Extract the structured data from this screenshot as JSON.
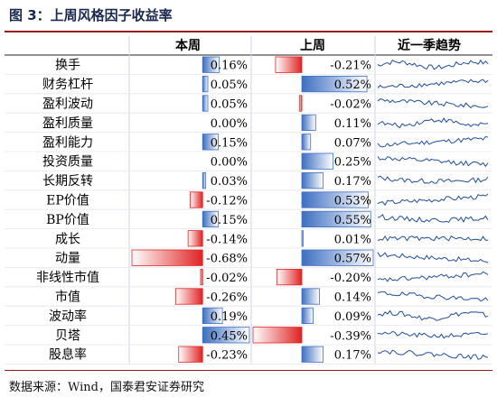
{
  "title": "图 3：上周风格因子收益率",
  "source": "数据来源：Wind，国泰君安证券研究",
  "colors": {
    "positive": "#3d6fc0",
    "negative": "#e02222",
    "sparkline": "#1f4e9c",
    "title_rule": "#9b1c1c"
  },
  "chart_data": {
    "type": "table",
    "columns": [
      "本周",
      "上周",
      "近一季趋势"
    ],
    "factors": [
      "换手",
      "财务杠杆",
      "盈利波动",
      "盈利质量",
      "盈利能力",
      "投资质量",
      "长期反转",
      "EP价值",
      "BP价值",
      "成长",
      "动量",
      "非线性市值",
      "市值",
      "波动率",
      "贝塔",
      "股息率"
    ],
    "this_week": [
      0.16,
      0.05,
      0.05,
      0.0,
      0.15,
      0.0,
      0.03,
      -0.12,
      0.15,
      -0.14,
      -0.68,
      -0.02,
      -0.26,
      0.19,
      0.45,
      -0.23
    ],
    "last_week": [
      -0.21,
      0.52,
      -0.02,
      0.11,
      0.07,
      0.25,
      0.17,
      0.53,
      0.55,
      0.01,
      0.57,
      -0.2,
      0.14,
      0.09,
      -0.39,
      0.17
    ],
    "this_week_labels": [
      "0.16%",
      "0.05%",
      "0.05%",
      "0.00%",
      "0.15%",
      "0.00%",
      "0.03%",
      "-0.12%",
      "0.15%",
      "-0.14%",
      "-0.68%",
      "-0.02%",
      "-0.26%",
      "0.19%",
      "0.45%",
      "-0.23%"
    ],
    "last_week_labels": [
      "-0.21%",
      "0.52%",
      "-0.02%",
      "0.11%",
      "0.07%",
      "0.25%",
      "0.17%",
      "0.53%",
      "0.55%",
      "0.01%",
      "0.57%",
      "-0.20%",
      "0.14%",
      "0.09%",
      "-0.39%",
      "0.17%"
    ],
    "this_week_scale": [
      -0.68,
      0.45
    ],
    "last_week_scale": [
      -0.39,
      0.57
    ],
    "trend_shapes": [
      "wave",
      "rise",
      "fall",
      "wave",
      "rise",
      "fall",
      "fall-rise",
      "rise",
      "fall-rise",
      "flat",
      "fall",
      "rise",
      "fall",
      "wave",
      "fall-rise",
      "fall"
    ]
  }
}
